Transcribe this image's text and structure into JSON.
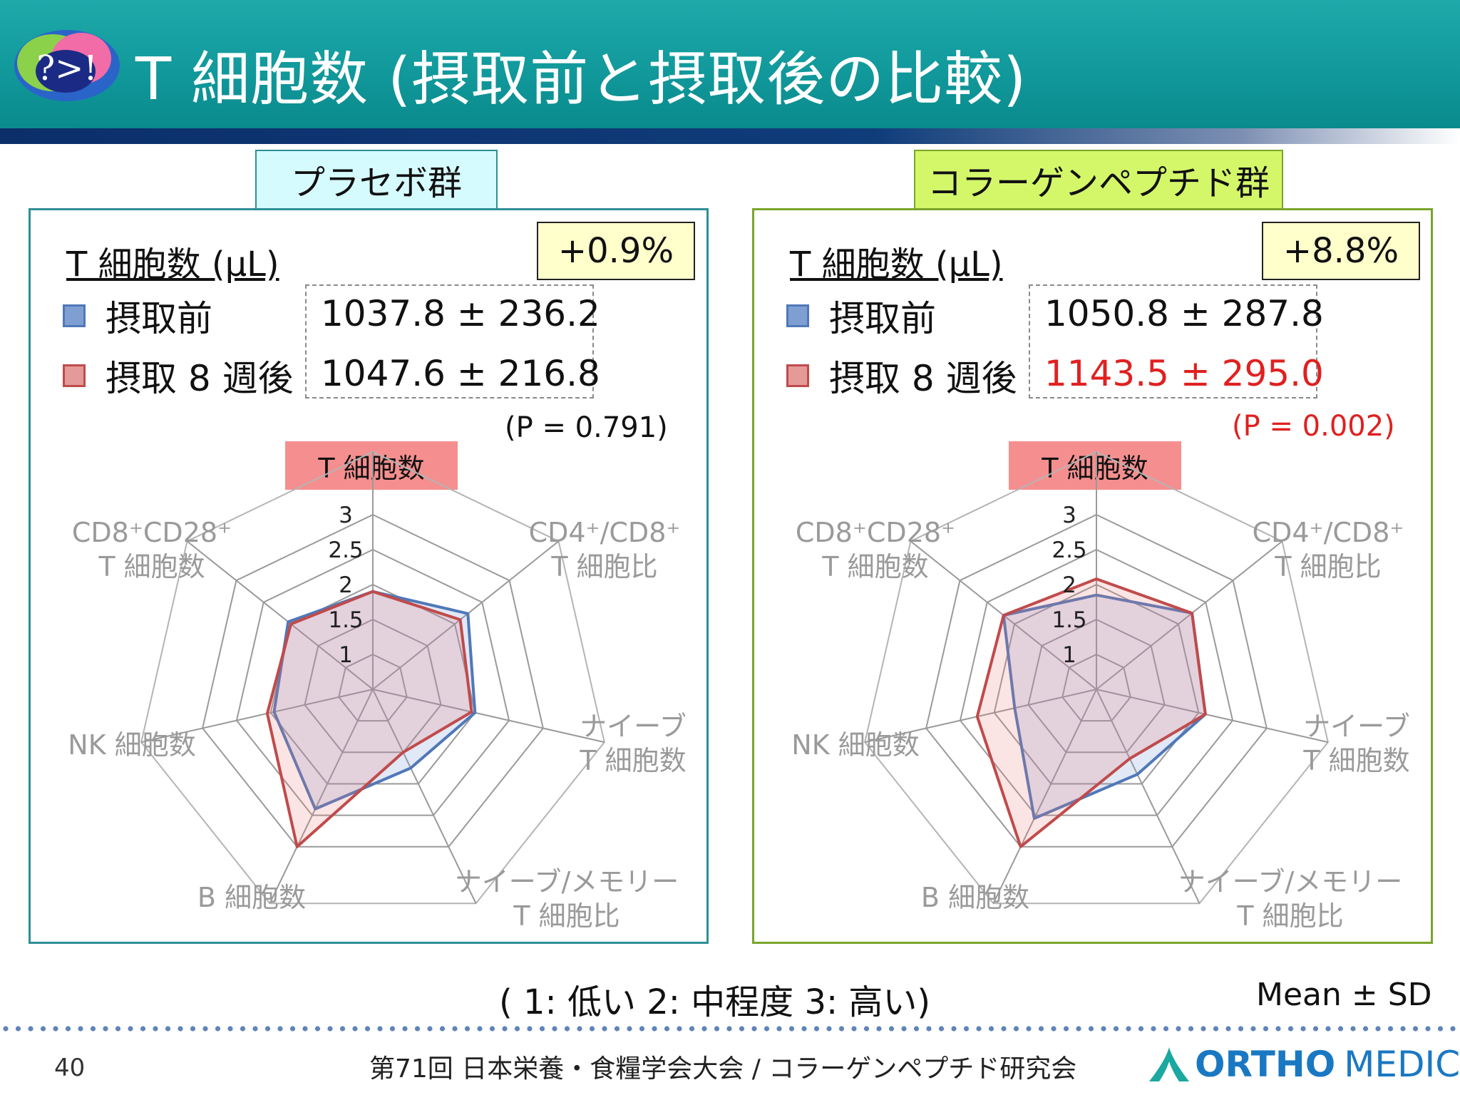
{
  "header": {
    "title": "T 細胞数 (摂取前と摂取後の比較)",
    "logo_text": "?>!"
  },
  "panels": [
    {
      "group": "プラセボ群",
      "measure": "T 細胞数 (μL)",
      "change": "+0.9%",
      "before_label": "摂取前",
      "after_label": "摂取 8 週後",
      "before_value": "1037.8 ± 236.2",
      "after_value": "1047.6 ± 216.8",
      "p_value": "(P = 0.791)",
      "metric_label": "T 細胞数"
    },
    {
      "group": "コラーゲンペプチド群",
      "measure": "T 細胞数 (μL)",
      "change": "+8.8%",
      "before_label": "摂取前",
      "after_label": "摂取 8 週後",
      "before_value": "1050.8 ± 287.8",
      "after_value": "1143.5 ± 295.0",
      "p_value": "(P = 0.002)",
      "metric_label": "T 細胞数"
    }
  ],
  "chart_data": [
    {
      "type": "radar",
      "axes": [
        "T 細胞数",
        "CD4⁺/CD8⁺ T 細胞比",
        "ナイーブ T 細胞数",
        "ナイーブ/メモリー T 細胞比",
        "B 細胞数",
        "NK 細胞数",
        "CD8⁺CD28⁺ T 細胞数"
      ],
      "axis_lines": [
        [
          "",
          ""
        ],
        [
          "CD4⁺/CD8⁺",
          "T 細胞比"
        ],
        [
          "ナイーブ",
          "T 細胞数"
        ],
        [
          "ナイーブ/メモリー",
          "T 細胞比"
        ],
        [
          "B 細胞数",
          ""
        ],
        [
          "NK 細胞数",
          ""
        ],
        [
          "CD8⁺CD28⁺",
          "T 細胞数"
        ]
      ],
      "scale": [
        1,
        3
      ],
      "ticks": [
        "1",
        "1.5",
        "2",
        "2.5",
        "3"
      ],
      "series": [
        {
          "name": "摂取前",
          "color": "#4f78b8",
          "fill": "rgba(120,150,215,0.22)",
          "values": [
            1.9,
            2.24,
            2.0,
            1.75,
            2.4,
            1.95,
            2.05
          ]
        },
        {
          "name": "摂取 8 週後",
          "color": "#c04b4b",
          "fill": "rgba(235,120,120,0.2)",
          "values": [
            1.9,
            2.1,
            1.95,
            1.5,
            3.0,
            2.05,
            2.0
          ]
        }
      ]
    },
    {
      "type": "radar",
      "axes": [
        "T 細胞数",
        "CD4⁺/CD8⁺ T 細胞比",
        "ナイーブ T 細胞数",
        "ナイーブ/メモリー T 細胞比",
        "B 細胞数",
        "NK 細胞数",
        "CD8⁺CD28⁺ T 細胞数"
      ],
      "axis_lines": [
        [
          "",
          ""
        ],
        [
          "CD4⁺/CD8⁺",
          "T 細胞比"
        ],
        [
          "ナイーブ",
          "T 細胞数"
        ],
        [
          "ナイーブ/メモリー",
          "T 細胞比"
        ],
        [
          "B 細胞数",
          ""
        ],
        [
          "NK 細胞数",
          ""
        ],
        [
          "CD8⁺CD28⁺",
          "T 細胞数"
        ]
      ],
      "scale": [
        1,
        3
      ],
      "ticks": [
        "1",
        "1.5",
        "2",
        "2.5",
        "3"
      ],
      "series": [
        {
          "name": "摂取前",
          "color": "#4f78b8",
          "fill": "rgba(120,150,215,0.22)",
          "values": [
            1.85,
            2.25,
            2.1,
            1.85,
            2.55,
            1.7,
            2.2
          ]
        },
        {
          "name": "摂取 8 週後",
          "color": "#c04b4b",
          "fill": "rgba(235,120,120,0.2)",
          "values": [
            2.08,
            2.25,
            2.1,
            1.6,
            3.0,
            2.25,
            2.2
          ]
        }
      ]
    }
  ],
  "footer": {
    "scale_note": "( 1: 低い 2: 中程度 3: 高い)",
    "mean_sd": "Mean ± SD",
    "page_number": "40",
    "conference": "第71回 日本栄養・食糧学会大会 / コラーゲンペプチド研究会",
    "brand_ortho": "ORTHO",
    "brand_medico": "MEDICO"
  },
  "colors": {
    "header": "#11999b",
    "panel_left_border": "#2e8f97",
    "panel_right_border": "#7aa52a",
    "significant_red": "#e02020"
  }
}
